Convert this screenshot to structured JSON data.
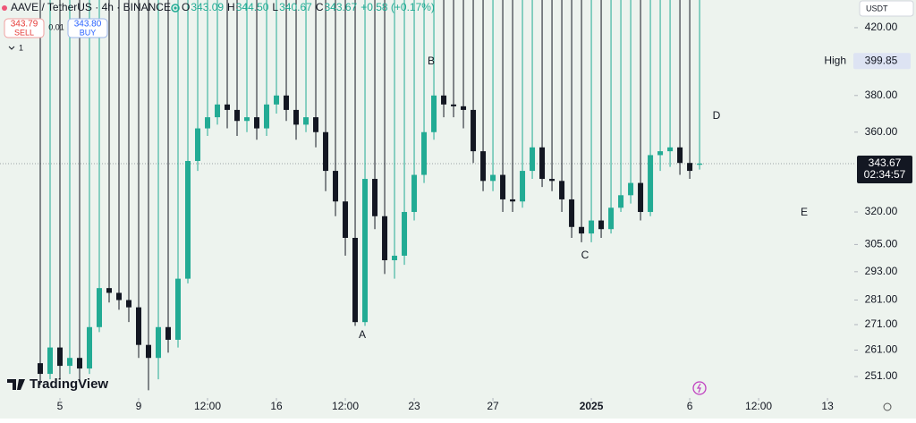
{
  "header": {
    "symbol": "AAVE / TetherUS · 4h · BINANCE",
    "ohlc": [
      {
        "key": "O",
        "value": "343.09"
      },
      {
        "key": "H",
        "value": "344.50"
      },
      {
        "key": "L",
        "value": "340.67"
      },
      {
        "key": "C",
        "value": "343.67"
      }
    ],
    "change": "+0.58 (+0.17%)"
  },
  "trade": {
    "sell_price": "343.79",
    "sell": "SELL",
    "spread": "0.01",
    "buy_price": "343.80",
    "buy": "BUY"
  },
  "indicators_count": "1",
  "currency": "USDT",
  "brand": "TradingView",
  "chart_data": {
    "type": "candlestick",
    "x": [
      4,
      4.5,
      5,
      5.5,
      6,
      6.5,
      7,
      7.5,
      8,
      8.5,
      9,
      9.5,
      10,
      10.5,
      11,
      11.5,
      12,
      12.5,
      13,
      13.5,
      14,
      14.5,
      15,
      15.5,
      16,
      16.5,
      17,
      17.5,
      18,
      18.5,
      19,
      19.5,
      20,
      20.5,
      21,
      21.5,
      22,
      22.5,
      23,
      23.5,
      24,
      24.5,
      25,
      25.5,
      26,
      26.5,
      27,
      27.5,
      28,
      28.5,
      29,
      29.5,
      30,
      30.5,
      31,
      31.5,
      32,
      32.5,
      33,
      33.5,
      34,
      34.5,
      35,
      35.5,
      36,
      36.5,
      37,
      37.5
    ],
    "open": [
      256,
      252,
      262,
      255,
      258,
      254,
      270,
      286,
      284,
      281,
      278,
      263,
      258,
      270,
      265,
      290,
      345,
      362,
      368,
      375,
      372,
      366,
      368,
      362,
      375,
      380,
      372,
      364,
      368,
      360,
      340,
      325,
      308,
      272,
      336,
      318,
      298,
      300,
      320,
      338,
      360,
      380,
      375,
      374,
      372,
      350,
      335,
      338,
      326,
      325,
      340,
      352,
      336,
      335,
      326,
      313,
      310,
      316,
      312,
      322,
      328,
      334,
      320,
      348,
      350,
      352,
      344,
      343.09
    ],
    "high": {
      "label": "High",
      "value": 399.85
    },
    "low": [
      248,
      250,
      250,
      252,
      249,
      252,
      268,
      280,
      277,
      272,
      258,
      246,
      250,
      260,
      262,
      288,
      340,
      358,
      364,
      362,
      358,
      360,
      356,
      358,
      370,
      366,
      356,
      360,
      352,
      330,
      318,
      300,
      270.5,
      270.5,
      312,
      292,
      290,
      296,
      316,
      334,
      356,
      368,
      368,
      362,
      344,
      330,
      330,
      320,
      320,
      322,
      336,
      332,
      330,
      320,
      308,
      306,
      306,
      308,
      310,
      320,
      324,
      316,
      318,
      340,
      342,
      338,
      336,
      340.67
    ],
    "close": [
      252,
      262,
      255,
      258,
      254,
      270,
      286,
      284,
      281,
      278,
      263,
      258,
      270,
      265,
      290,
      345,
      362,
      368,
      375,
      372,
      366,
      368,
      362,
      375,
      380,
      372,
      364,
      368,
      360,
      340,
      325,
      308,
      272,
      336,
      318,
      298,
      300,
      320,
      338,
      360,
      380,
      375,
      374,
      372,
      350,
      335,
      338,
      326,
      325,
      340,
      352,
      336,
      335,
      326,
      313,
      310,
      316,
      312,
      322,
      328,
      334,
      320,
      348,
      350,
      352,
      344,
      340,
      343.67
    ],
    "xlim": [
      1.955,
      45.36
    ],
    "xticks": [
      5,
      9,
      {
        "value": 12.5,
        "label": "12:00"
      },
      16,
      {
        "value": 19.5,
        "label": "12:00"
      },
      23,
      27,
      {
        "value": 32,
        "label": "2025"
      },
      {
        "value": 37,
        "label": "6"
      },
      {
        "value": 40.5,
        "label": "12:00"
      },
      {
        "value": 44,
        "label": "13"
      }
    ],
    "ylim": [
      243.2,
      437.5
    ],
    "log_scale": true,
    "yticks": [
      {
        "value": 420,
        "label": "420.00"
      },
      {
        "value": 380,
        "label": "380.00"
      },
      {
        "value": 360,
        "label": "360.00"
      },
      {
        "value": 320,
        "label": "320.00"
      },
      {
        "value": 305,
        "label": "305.00"
      },
      {
        "value": 293,
        "label": "293.00"
      },
      {
        "value": 281,
        "label": "281.00"
      },
      {
        "value": 271,
        "label": "271.00"
      },
      {
        "value": 261,
        "label": "261.00"
      },
      {
        "value": 251,
        "label": "251.00"
      }
    ],
    "up_color": "#22ab94",
    "down_color": "#131722",
    "background": "#edf3ee",
    "annotations": [
      "A",
      "B",
      "C",
      "D",
      "E"
    ],
    "last_price": 343.67,
    "countdown": "02:34:57"
  }
}
